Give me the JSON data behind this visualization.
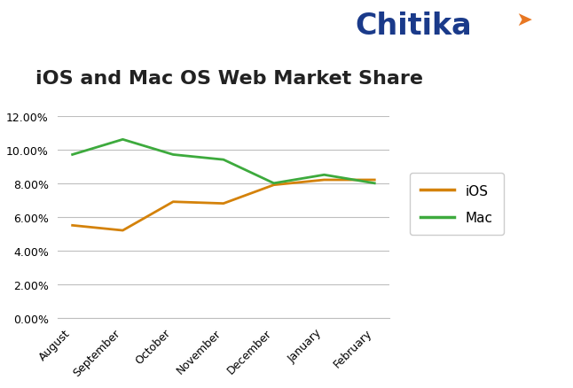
{
  "title": "iOS and Mac OS Web Market Share",
  "categories": [
    "August",
    "September",
    "October",
    "November",
    "December",
    "January",
    "February"
  ],
  "ios_values": [
    0.055,
    0.052,
    0.069,
    0.068,
    0.079,
    0.082,
    0.082
  ],
  "mac_values": [
    0.097,
    0.106,
    0.097,
    0.094,
    0.08,
    0.085,
    0.08
  ],
  "ios_color": "#D4820A",
  "mac_color": "#3DAA3D",
  "ylim": [
    0.0,
    0.12
  ],
  "yticks": [
    0.0,
    0.02,
    0.04,
    0.06,
    0.08,
    0.1,
    0.12
  ],
  "grid_color": "#BEBEBE",
  "background_color": "#FFFFFF",
  "title_fontsize": 16,
  "legend_ios": "iOS",
  "legend_mac": "Mac",
  "line_width": 2.0,
  "chitika_color": "#1A3A8A",
  "chitika_fontsize": 24
}
